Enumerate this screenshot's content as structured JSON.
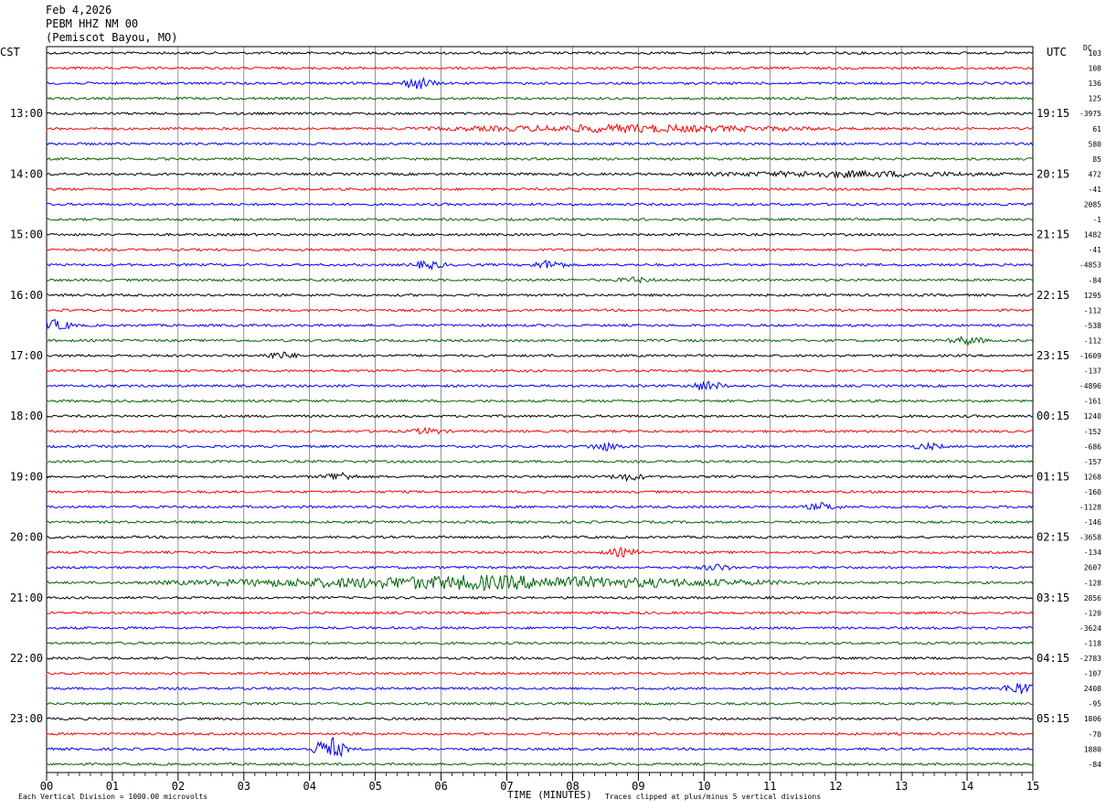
{
  "header": {
    "date": "Feb 4,2026",
    "station": "PEBM HHZ NM 00",
    "location": "(Pemiscot Bayou, MO)"
  },
  "axis_labels": {
    "left_tz": "CST",
    "right_tz": "UTC",
    "dc_label": "DC",
    "xlabel": "TIME (MINUTES)"
  },
  "footer": {
    "scale_note": "Each Vertical Division = 1000.00 microvolts",
    "clip_note": "Traces clipped at plus/minus 5 vertical divisions"
  },
  "colors": {
    "trace_cycle": [
      "#000000",
      "#ff0000",
      "#0000ff",
      "#006400"
    ],
    "grid": "#000000"
  },
  "chart_data": {
    "type": "line",
    "title": "PEBM HHZ NM 00",
    "xlabel": "TIME (MINUTES)",
    "xlim": [
      0,
      15
    ],
    "x_ticks": [
      "00",
      "01",
      "02",
      "03",
      "04",
      "05",
      "06",
      "07",
      "08",
      "09",
      "10",
      "11",
      "12",
      "13",
      "14",
      "15"
    ],
    "left_hour_labels": [
      "13:00",
      "14:00",
      "15:00",
      "16:00",
      "17:00",
      "18:00",
      "19:00",
      "20:00",
      "21:00",
      "22:00",
      "23:00"
    ],
    "right_hour_labels": [
      "19:15",
      "20:15",
      "21:15",
      "22:15",
      "23:15",
      "00:15",
      "01:15",
      "02:15",
      "03:15",
      "04:15",
      "05:15"
    ],
    "rows_per_hour": 4,
    "row_count": 48,
    "first_hour_label_row": 4,
    "dc_offsets": [
      "103",
      "108",
      "136",
      "125",
      "-3975",
      "61",
      "580",
      "85",
      "472",
      "-41",
      "2085",
      "-1",
      "1482",
      "-41",
      "-4853",
      "-84",
      "1295",
      "-112",
      "-538",
      "-112",
      "-1609",
      "-137",
      "-4896",
      "-161",
      "1240",
      "-152",
      "-686",
      "-157",
      "1268",
      "-160",
      "-1128",
      "-146",
      "-3658",
      "-134",
      "2607",
      "-128",
      "2856",
      "-120",
      "-3624",
      "-118",
      "-2783",
      "-107",
      "2408",
      "-95",
      "1806",
      "-70",
      "1880",
      "-84"
    ],
    "events": [
      {
        "row": 2,
        "minute": 5.65,
        "amp": 1.0
      },
      {
        "row": 5,
        "minute": 8.8,
        "amp": 0.6,
        "width": 3.6
      },
      {
        "row": 8,
        "minute": 12.2,
        "amp": 0.45,
        "width": 2.8
      },
      {
        "row": 14,
        "minute": 5.8,
        "amp": 0.7
      },
      {
        "row": 14,
        "minute": 7.65,
        "amp": 0.8
      },
      {
        "row": 15,
        "minute": 8.95,
        "amp": 0.4
      },
      {
        "row": 18,
        "minute": 0.15,
        "amp": 0.9
      },
      {
        "row": 19,
        "minute": 14.0,
        "amp": 0.7
      },
      {
        "row": 20,
        "minute": 3.55,
        "amp": 0.6
      },
      {
        "row": 22,
        "minute": 10.05,
        "amp": 0.8
      },
      {
        "row": 25,
        "minute": 5.8,
        "amp": 0.5
      },
      {
        "row": 26,
        "minute": 8.5,
        "amp": 0.7
      },
      {
        "row": 26,
        "minute": 13.4,
        "amp": 0.5
      },
      {
        "row": 28,
        "minute": 4.45,
        "amp": 0.8
      },
      {
        "row": 28,
        "minute": 8.85,
        "amp": 0.6
      },
      {
        "row": 30,
        "minute": 11.8,
        "amp": 0.6
      },
      {
        "row": 33,
        "minute": 8.75,
        "amp": 0.7
      },
      {
        "row": 34,
        "minute": 10.2,
        "amp": 0.5
      },
      {
        "row": 35,
        "minute": 6.6,
        "amp": 1.2,
        "width": 5.5
      },
      {
        "row": 46,
        "minute": 4.3,
        "amp": 2.2
      },
      {
        "row": 42,
        "minute": 14.8,
        "amp": 1.1
      }
    ]
  }
}
